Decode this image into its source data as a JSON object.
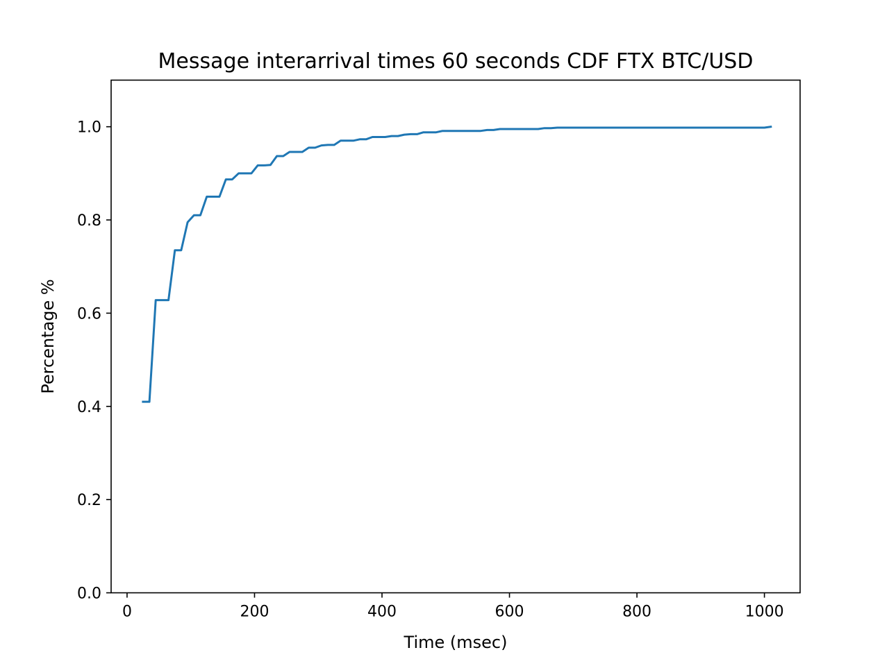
{
  "chart_data": {
    "type": "line",
    "title": "Message interarrival times 60 seconds CDF FTX BTC/USD",
    "xlabel": "Time (msec)",
    "ylabel": "Percentage %",
    "xlim": [
      -25,
      1056
    ],
    "ylim": [
      0,
      1.1
    ],
    "xticks": [
      0,
      200,
      400,
      600,
      800,
      1000
    ],
    "yticks": [
      0.0,
      0.2,
      0.4,
      0.6,
      0.8,
      1.0
    ],
    "xtick_labels": [
      "0",
      "200",
      "400",
      "600",
      "800",
      "1000"
    ],
    "ytick_labels": [
      "0.0",
      "0.2",
      "0.4",
      "0.6",
      "0.8",
      "1.0"
    ],
    "grid": false,
    "series": [
      {
        "color": "#1f77b4",
        "x": [
          25,
          35,
          45,
          55,
          65,
          75,
          85,
          95,
          105,
          115,
          125,
          135,
          145,
          155,
          165,
          175,
          185,
          195,
          205,
          215,
          225,
          235,
          245,
          255,
          265,
          275,
          285,
          295,
          305,
          315,
          325,
          335,
          345,
          355,
          365,
          375,
          385,
          395,
          405,
          415,
          425,
          435,
          445,
          455,
          465,
          475,
          485,
          495,
          505,
          515,
          525,
          535,
          545,
          555,
          565,
          575,
          585,
          595,
          605,
          615,
          625,
          635,
          645,
          655,
          665,
          675,
          700,
          750,
          800,
          850,
          900,
          950,
          1000,
          1010
        ],
        "y": [
          0.41,
          0.41,
          0.628,
          0.628,
          0.628,
          0.735,
          0.735,
          0.795,
          0.81,
          0.81,
          0.85,
          0.85,
          0.85,
          0.887,
          0.887,
          0.9,
          0.9,
          0.9,
          0.917,
          0.917,
          0.918,
          0.937,
          0.937,
          0.946,
          0.946,
          0.946,
          0.955,
          0.955,
          0.96,
          0.961,
          0.961,
          0.97,
          0.97,
          0.97,
          0.973,
          0.973,
          0.978,
          0.978,
          0.978,
          0.98,
          0.98,
          0.983,
          0.984,
          0.984,
          0.988,
          0.988,
          0.988,
          0.991,
          0.991,
          0.991,
          0.991,
          0.991,
          0.991,
          0.991,
          0.993,
          0.993,
          0.995,
          0.995,
          0.995,
          0.995,
          0.995,
          0.995,
          0.995,
          0.997,
          0.997,
          0.998,
          0.998,
          0.998,
          0.998,
          0.998,
          0.998,
          0.998,
          0.998,
          1.0
        ]
      }
    ]
  }
}
